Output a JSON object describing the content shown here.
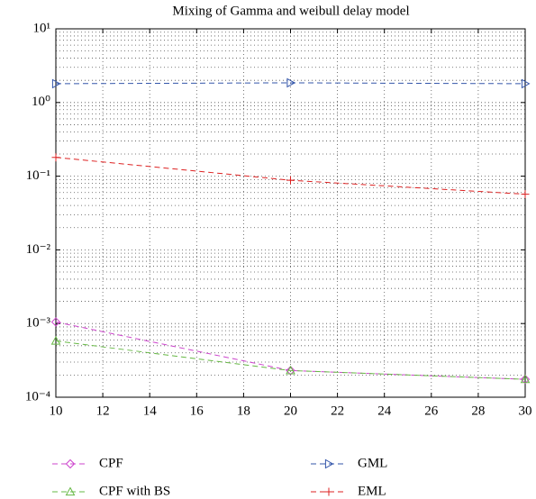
{
  "chart_data": {
    "type": "line",
    "title": "Mixing of Gamma and weibull delay model",
    "x": [
      10,
      20,
      30
    ],
    "xlim": [
      10,
      30
    ],
    "xticks": [
      10,
      12,
      14,
      16,
      18,
      20,
      22,
      24,
      26,
      28,
      30
    ],
    "ylim": [
      0.0001,
      10
    ],
    "yscale": "log",
    "yticks": [
      {
        "value": 10,
        "label": "10¹"
      },
      {
        "value": 1,
        "label": "10⁰"
      },
      {
        "value": 0.1,
        "label": "10⁻¹"
      },
      {
        "value": 0.01,
        "label": "10⁻²"
      },
      {
        "value": 0.001,
        "label": "10⁻³"
      },
      {
        "value": 0.0001,
        "label": "10⁻⁴"
      }
    ],
    "grid": true,
    "legend": "below",
    "series": [
      {
        "name": "CPF",
        "color": "#cc44cc",
        "marker": "diamond",
        "values": [
          0.00105,
          0.00023,
          0.000175
        ]
      },
      {
        "name": "CPF with BS",
        "color": "#66b844",
        "marker": "triangle-up",
        "values": [
          0.00058,
          0.00023,
          0.000175
        ]
      },
      {
        "name": "GML",
        "color": "#3355aa",
        "marker": "triangle-right",
        "values": [
          1.8,
          1.85,
          1.8
        ]
      },
      {
        "name": "EML",
        "color": "#dd2222",
        "marker": "plus",
        "values": [
          0.18,
          0.088,
          0.057
        ]
      }
    ]
  }
}
